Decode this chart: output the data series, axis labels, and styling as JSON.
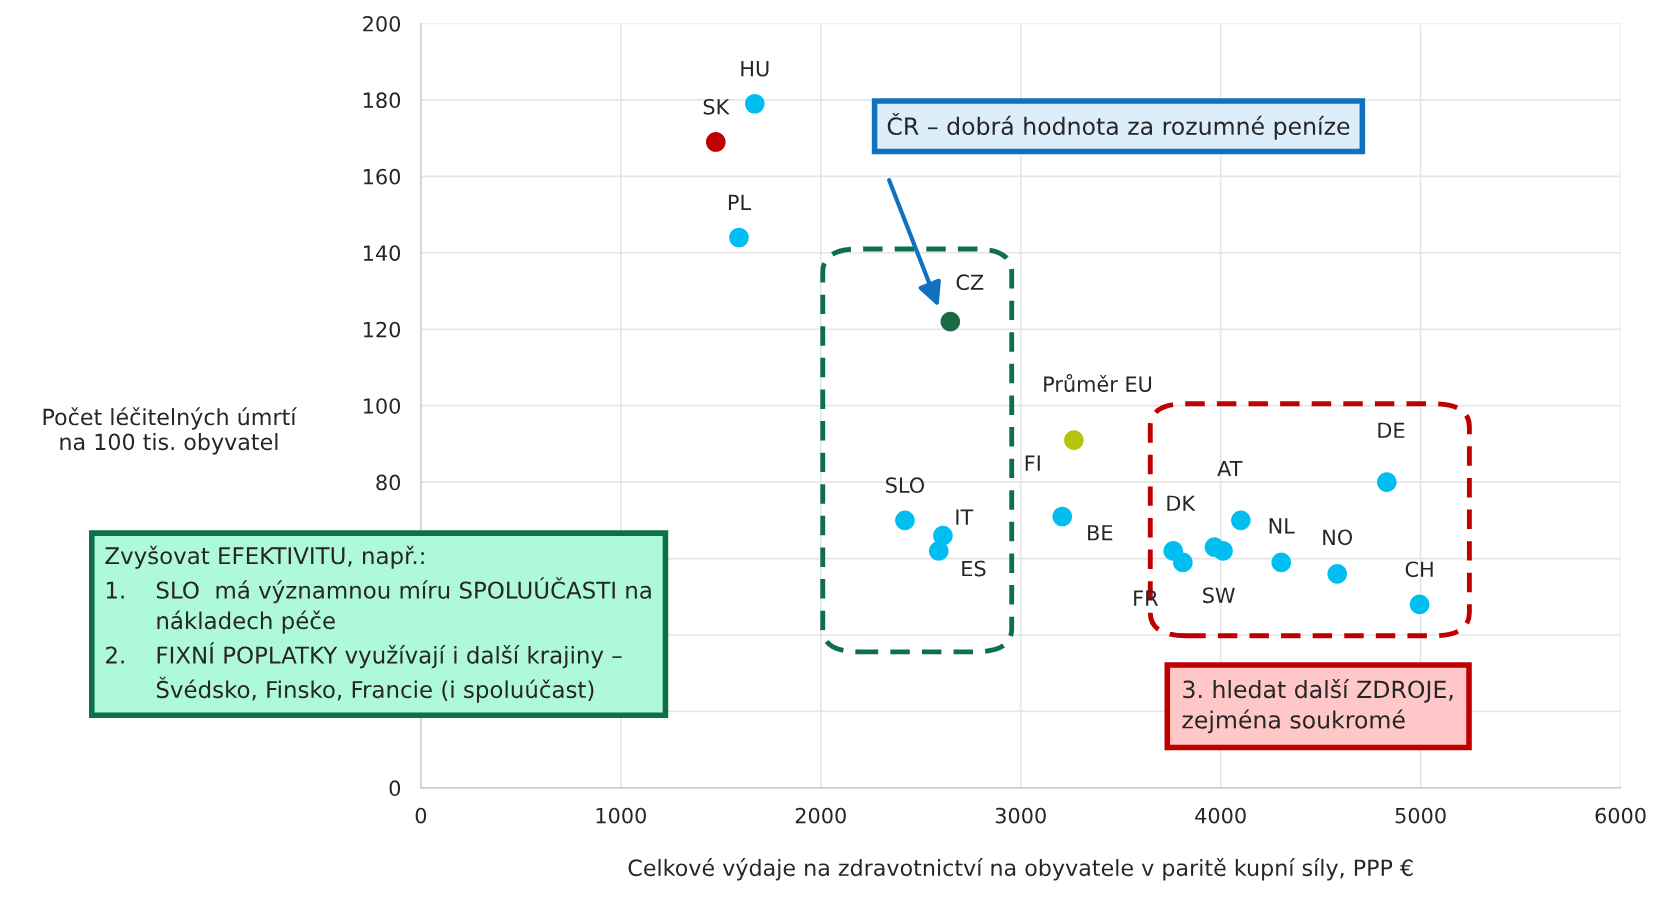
{
  "chart_data": {
    "type": "scatter",
    "xlabel": "Celkové výdaje na zdravotnictví na obyvatele v paritě kupní síly, PPP €",
    "ylabel": "Počet léčitelných úmrtí\nna 100 tis. obyvatel",
    "x": [
      1670,
      1475,
      1591,
      2648,
      3266,
      3208,
      2421,
      2611,
      2590,
      3763,
      3811,
      4101,
      3969,
      4303,
      4583,
      4831,
      4995,
      4012
    ],
    "series": [
      {
        "colors": [
          "#00bff0",
          "#c00000",
          "#00bff0",
          "#1a6b45",
          "#b5c40c",
          "#00bff0",
          "#00bff0",
          "#00bff0",
          "#00bff0",
          "#00bff0",
          "#00bff0",
          "#00bff0",
          "#00bff0",
          "#00bff0",
          "#00bff0",
          "#00bff0",
          "#00bff0",
          "#00bff0"
        ],
        "values": [
          179,
          169,
          144,
          122,
          91,
          71,
          70,
          66,
          62,
          62,
          59,
          70,
          63,
          59,
          56,
          80,
          48,
          62
        ]
      }
    ],
    "xlim": [
      0,
      6000
    ],
    "xticks": [
      0,
      1000,
      2000,
      3000,
      4000,
      5000,
      6000
    ],
    "ylim": [
      0,
      200
    ],
    "yticks": [
      0,
      {
        "value": 20,
        "label": null
      },
      {
        "value": 40,
        "label": null
      },
      {
        "value": 60,
        "label": null
      },
      80,
      100,
      120,
      140,
      160,
      180,
      200
    ],
    "grid": true,
    "marker": "circle",
    "annotations": [
      {
        "text": "HU",
        "x": 1670,
        "y": 179
      },
      {
        "text": "SK",
        "x": 1475,
        "y": 169
      },
      {
        "text": "PL",
        "x": 1591,
        "y": 144
      },
      {
        "text": "CZ",
        "x": 2648,
        "y": 122
      },
      {
        "text": "Průměr EU",
        "x": 3266,
        "y": 91
      },
      {
        "text": "BE",
        "x": 3208,
        "y": 71
      },
      {
        "text": "SLO",
        "x": 2421,
        "y": 70
      },
      {
        "text": "IT",
        "x": 2611,
        "y": 66
      },
      {
        "text": "ES",
        "x": 2590,
        "y": 62
      },
      {
        "text": "DK",
        "x": 3763,
        "y": 62
      },
      {
        "text": "FR",
        "x": 3811,
        "y": 59
      },
      {
        "text": "AT",
        "x": 4101,
        "y": 70
      },
      {
        "text": "SW",
        "x": 3969,
        "y": 63
      },
      {
        "text": "NL",
        "x": 4303,
        "y": 59
      },
      {
        "text": "NO",
        "x": 4583,
        "y": 56
      },
      {
        "text": "DE",
        "x": 4831,
        "y": 80
      },
      {
        "text": "CH",
        "x": 4995,
        "y": 48
      },
      "ČR – dobrá hodnota za rozumné peníze",
      "FI",
      "Zvyšovat EFEKTIVITU, např.:\n1.    SLO  má významnou míru SPOLUÚČASTI na\n       nákladech péče\n2.    FIXNÍ POPLATKY využívají i další krajiny –\n       Švédsko, Finsko, Francie (i spoluúčast)",
      "3. hledat další ZDROJE,\nzejména soukromé"
    ]
  }
}
